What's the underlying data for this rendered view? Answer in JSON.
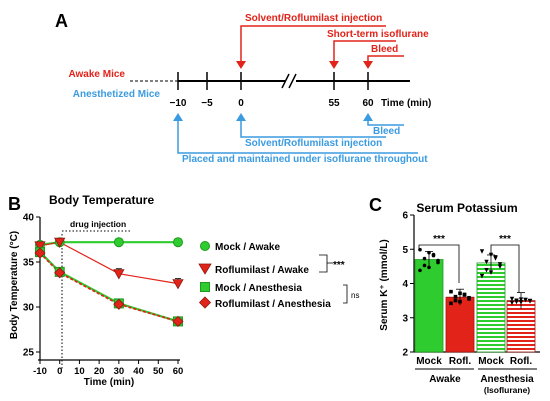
{
  "panel_a": {
    "letter": "A",
    "awake_label": "Awake Mice",
    "anesthetized_label": "Anesthetized Mice",
    "ticks": [
      "−10",
      "−5",
      "0",
      "55",
      "60"
    ],
    "time_unit": "Time (min)",
    "top_annotations": [
      "Solvent/Roflumilast injection",
      "Short-term isoflurane",
      "Bleed"
    ],
    "bottom_annotations": [
      "Solvent/Roflumilast injection",
      "Bleed",
      "Placed and maintained under isoflurane throughout"
    ],
    "colors": {
      "red": "#e2231a",
      "blue": "#3b9be0",
      "black": "#000000"
    }
  },
  "chart_data": [
    {
      "type": "line",
      "panel": "B",
      "title": "Body Temperature",
      "xlabel": "Time (min)",
      "ylabel": "Body Temperature (°C)",
      "xlim": [
        -10,
        60
      ],
      "ylim": [
        25,
        40
      ],
      "xticks": [
        "-10",
        "0",
        "10",
        "20",
        "30",
        "40",
        "50",
        "60"
      ],
      "yticks": [
        "25",
        "30",
        "35",
        "40"
      ],
      "annotation": "drug injection",
      "x": [
        -10,
        0,
        30,
        60
      ],
      "series": [
        {
          "name": "Mock / Awake",
          "values": [
            36.9,
            37.2,
            37.2,
            37.2
          ],
          "color": "#2ecc2e",
          "marker": "circle"
        },
        {
          "name": "Roflumilast / Awake",
          "values": [
            36.8,
            37.2,
            33.7,
            32.6
          ],
          "color": "#e2231a",
          "marker": "triangle-down"
        },
        {
          "name": "Mock / Anesthesia",
          "values": [
            36.1,
            33.9,
            30.4,
            28.4
          ],
          "color": "#2ecc2e",
          "marker": "square"
        },
        {
          "name": "Roflumilast / Anesthesia",
          "values": [
            36.0,
            33.8,
            30.3,
            28.4
          ],
          "color": "#e2231a",
          "marker": "diamond"
        }
      ],
      "significance": [
        "***",
        "ns"
      ]
    },
    {
      "type": "bar",
      "panel": "C",
      "title": "Serum Potassium",
      "ylabel": "Serum K⁺ (mmol/L)",
      "ylim": [
        2,
        6
      ],
      "yticks": [
        "2",
        "3",
        "4",
        "5",
        "6"
      ],
      "categories": [
        "Mock",
        "Rofl.",
        "Mock",
        "Rofl."
      ],
      "groups": [
        "Awake",
        "Anesthesia",
        "(Isoflurane)"
      ],
      "values": [
        4.7,
        3.6,
        4.6,
        3.5
      ],
      "significance": [
        "***",
        "***"
      ]
    }
  ],
  "panel_letters": {
    "b": "B",
    "c": "C"
  }
}
